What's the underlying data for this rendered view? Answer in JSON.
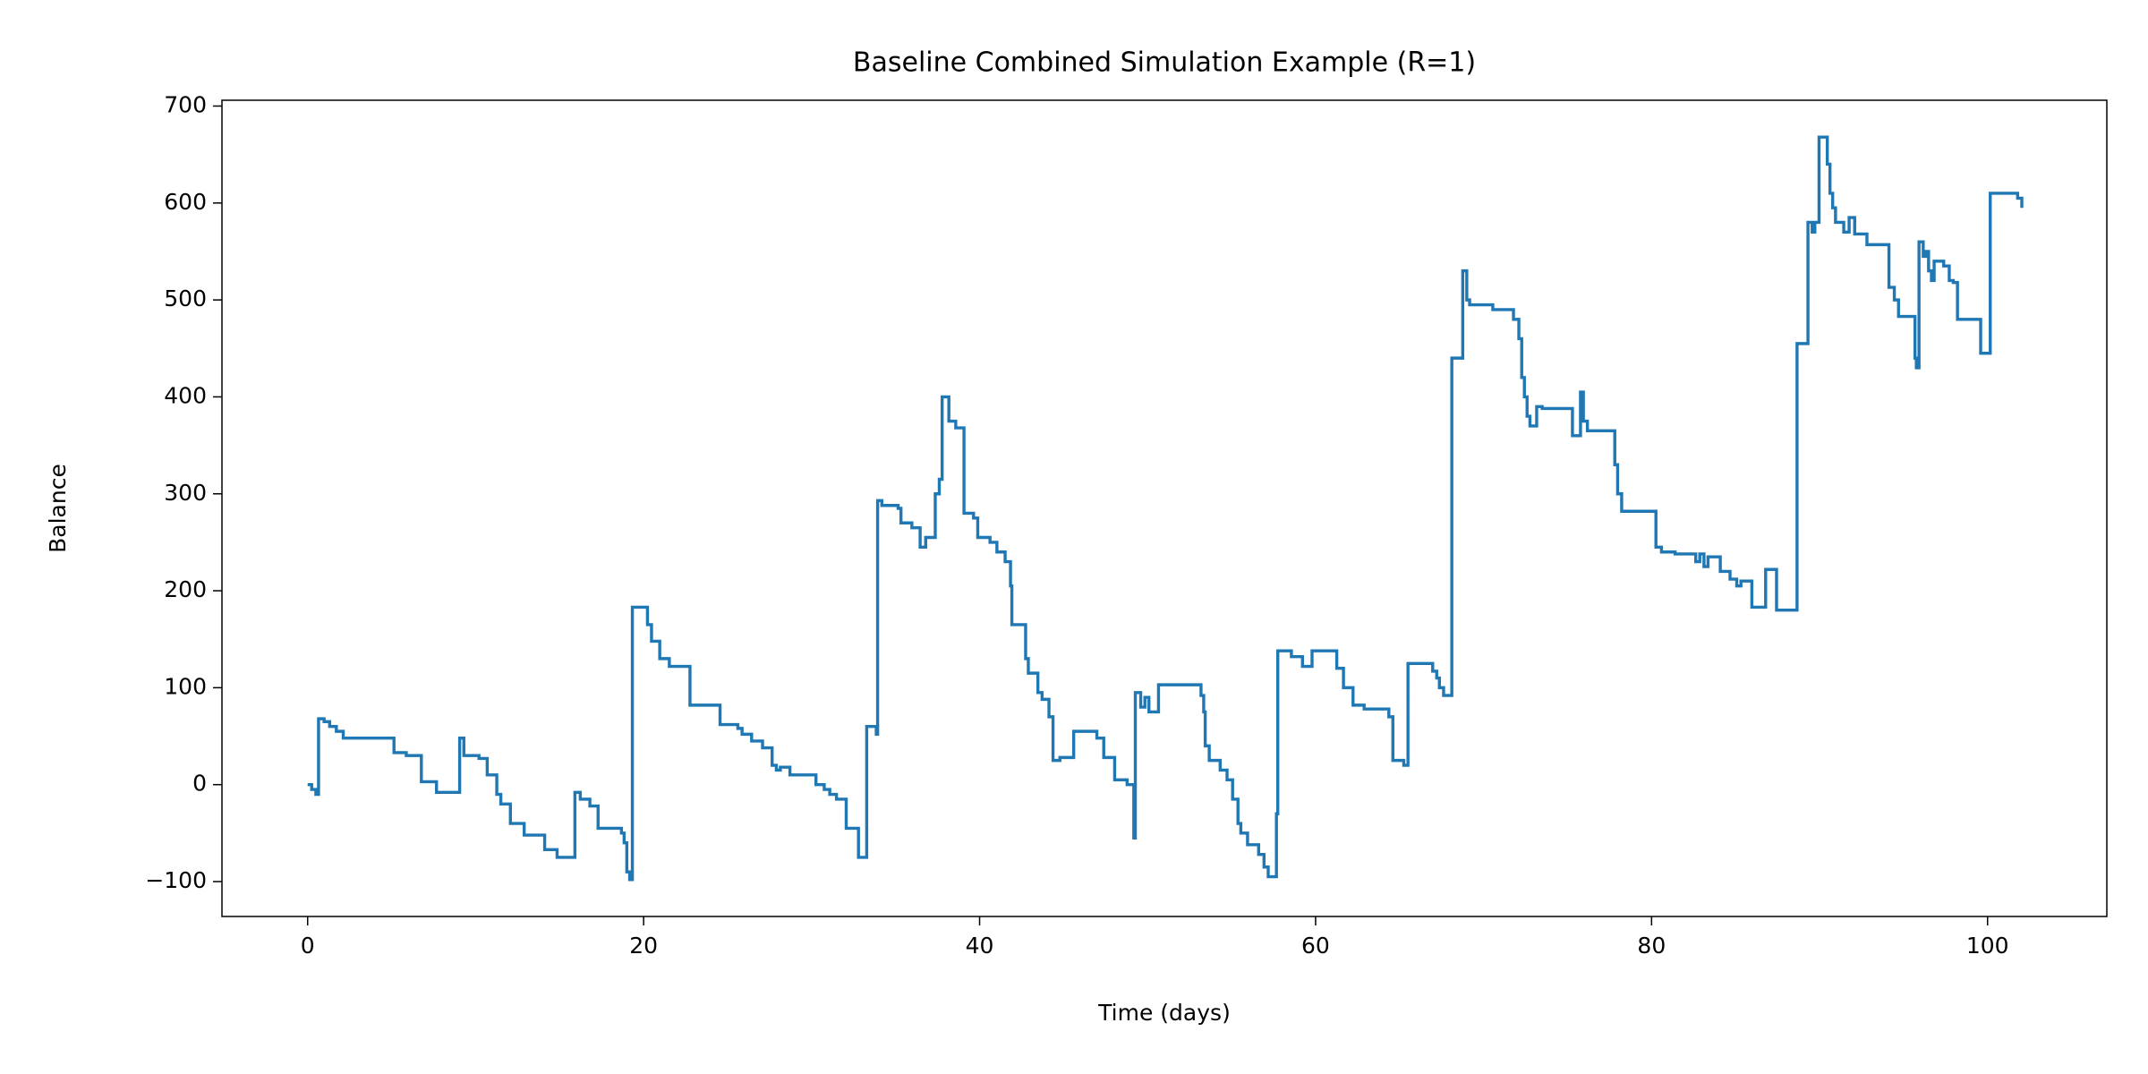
{
  "chart_data": {
    "type": "line",
    "step": "post",
    "title": "Baseline Combined Simulation Example (R=1)",
    "xlabel": "Time (days)",
    "ylabel": "Balance",
    "xlim": [
      -5.1,
      107.1
    ],
    "ylim": [
      -136,
      706
    ],
    "xticks": [
      0,
      20,
      40,
      60,
      80,
      100
    ],
    "yticks": [
      {
        "value": -100,
        "label": "−100"
      },
      0,
      100,
      200,
      300,
      400,
      500,
      600,
      700
    ],
    "grid": false,
    "x": [
      0,
      0.24,
      0.49,
      0.65,
      0.98,
      1.31,
      1.71,
      2.12,
      5.14,
      5.87,
      6.77,
      7.67,
      9.05,
      9.3,
      10.2,
      10.69,
      11.26,
      11.5,
      12.07,
      12.89,
      14.11,
      14.85,
      15.91,
      16.23,
      16.8,
      17.29,
      18.68,
      18.84,
      19.0,
      19.17,
      19.33,
      20.23,
      20.47,
      20.96,
      21.53,
      22.76,
      24.55,
      25.61,
      25.86,
      26.43,
      27.08,
      27.65,
      27.9,
      28.14,
      28.71,
      30.26,
      30.75,
      31.08,
      31.48,
      32.06,
      32.79,
      33.28,
      33.85,
      33.93,
      34.18,
      35.15,
      35.32,
      35.97,
      36.46,
      36.79,
      37.36,
      37.6,
      37.77,
      38.17,
      38.58,
      39.07,
      39.64,
      39.89,
      40.62,
      41.03,
      41.52,
      41.84,
      41.92,
      42.74,
      42.9,
      43.47,
      43.72,
      44.13,
      44.37,
      44.78,
      45.6,
      46.98,
      47.39,
      48.04,
      48.78,
      49.18,
      49.27,
      49.59,
      49.84,
      50.08,
      50.65,
      53.18,
      53.34,
      53.43,
      53.67,
      54.32,
      54.73,
      55.06,
      55.38,
      55.55,
      55.95,
      56.61,
      56.93,
      57.18,
      57.67,
      57.75,
      58.56,
      59.22,
      59.79,
      61.26,
      61.66,
      62.23,
      62.89,
      64.36,
      64.6,
      65.25,
      65.5,
      66.97,
      67.21,
      67.37,
      67.62,
      68.11,
      68.76,
      69.0,
      69.17,
      70.55,
      71.78,
      72.1,
      72.27,
      72.43,
      72.59,
      72.76,
      73.16,
      73.49,
      75.29,
      75.77,
      75.94,
      76.18,
      77.81,
      77.98,
      78.22,
      80.26,
      80.59,
      81.4,
      82.63,
      82.87,
      83.12,
      83.36,
      84.09,
      84.67,
      85.07,
      85.32,
      85.97,
      86.79,
      87.44,
      88.66,
      89.31,
      89.56,
      89.72,
      89.97,
      90.46,
      90.62,
      90.78,
      90.95,
      91.44,
      91.76,
      92.09,
      92.82,
      94.13,
      94.45,
      94.7,
      95.68,
      95.76,
      95.92,
      96.17,
      96.33,
      96.49,
      96.66,
      96.82,
      97.39,
      97.72,
      97.96,
      98.21,
      99.59,
      100.16,
      101.79,
      102.04
    ],
    "series": [
      {
        "color": "#1f77b4",
        "values": [
          0,
          -5,
          -10,
          68,
          65,
          60,
          55,
          48,
          33,
          30,
          3,
          -8,
          48,
          30,
          27,
          10,
          -10,
          -20,
          -40,
          -52,
          -67,
          -75,
          -8,
          -15,
          -22,
          -45,
          -50,
          -60,
          -90,
          -98,
          183,
          165,
          148,
          130,
          122,
          82,
          62,
          58,
          52,
          45,
          38,
          20,
          15,
          18,
          10,
          0,
          -5,
          -10,
          -15,
          -45,
          -75,
          60,
          52,
          293,
          288,
          285,
          270,
          265,
          245,
          255,
          300,
          315,
          400,
          375,
          368,
          280,
          275,
          255,
          250,
          240,
          230,
          205,
          165,
          130,
          115,
          95,
          88,
          70,
          25,
          28,
          55,
          48,
          28,
          5,
          0,
          -55,
          95,
          80,
          90,
          75,
          103,
          92,
          75,
          40,
          25,
          15,
          5,
          -15,
          -40,
          -50,
          -62,
          -72,
          -85,
          -95,
          -30,
          138,
          132,
          122,
          138,
          120,
          100,
          82,
          78,
          70,
          25,
          20,
          125,
          117,
          110,
          100,
          92,
          440,
          530,
          500,
          495,
          490,
          480,
          460,
          420,
          400,
          380,
          370,
          390,
          388,
          360,
          405,
          375,
          365,
          330,
          300,
          282,
          245,
          240,
          238,
          230,
          238,
          225,
          235,
          220,
          212,
          205,
          210,
          183,
          222,
          180,
          455,
          580,
          570,
          580,
          668,
          640,
          610,
          595,
          580,
          570,
          585,
          568,
          557,
          513,
          500,
          483,
          440,
          430,
          560,
          545,
          550,
          530,
          520,
          540,
          535,
          520,
          518,
          480,
          445,
          610,
          605,
          595
        ]
      }
    ]
  }
}
